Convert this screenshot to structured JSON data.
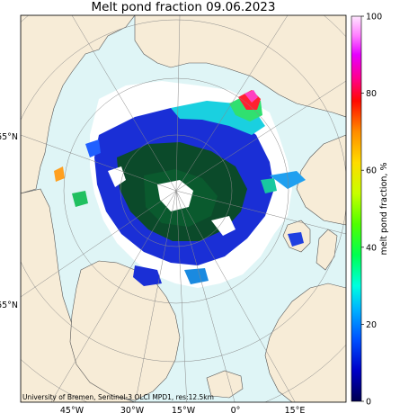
{
  "title": "Melt pond fraction 09.06.2023",
  "credit": "University of Bremen, Sentinel-3 OLCI MPD1, res:12.5km",
  "colorbar": {
    "label": "melt pond fraction, %",
    "ticks": [
      "0",
      "20",
      "40",
      "60",
      "80",
      "100"
    ],
    "range": [
      0,
      100
    ]
  },
  "lat_labels": [
    "65°N",
    "65°N"
  ],
  "lon_labels": [
    "45°W",
    "30°W",
    "15°W",
    "0°",
    "15°E"
  ],
  "colors": {
    "land": "#f7ecd7",
    "ocean": "#dff5f6",
    "ice": "#ffffff",
    "coast": "#555555"
  }
}
